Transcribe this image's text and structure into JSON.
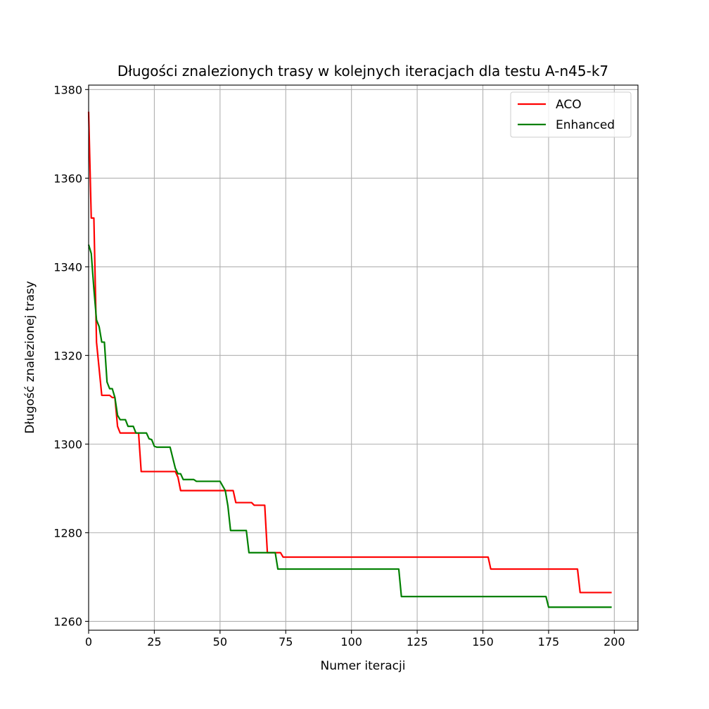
{
  "chart_data": {
    "type": "line",
    "title": "Długości znalezionych trasy w kolejnych iteracjach dla testu A-n45-k7",
    "xlabel": "Numer iteracji",
    "ylabel": "Długość znalezionej trasy",
    "xlim": [
      0,
      209
    ],
    "ylim": [
      1258,
      1381
    ],
    "xticks": [
      0,
      25,
      50,
      75,
      100,
      125,
      150,
      175,
      200
    ],
    "yticks": [
      1260,
      1280,
      1300,
      1320,
      1340,
      1360,
      1380
    ],
    "grid": true,
    "legend_position": "top-right",
    "series": [
      {
        "name": "ACO",
        "color": "#ff0000",
        "points": [
          [
            0,
            1375
          ],
          [
            1,
            1351
          ],
          [
            2,
            1351
          ],
          [
            3,
            1323
          ],
          [
            4,
            1317
          ],
          [
            5,
            1311
          ],
          [
            6,
            1311
          ],
          [
            7,
            1311
          ],
          [
            8,
            1311
          ],
          [
            9,
            1310.5
          ],
          [
            10,
            1310.5
          ],
          [
            11,
            1304
          ],
          [
            12,
            1302.5
          ],
          [
            13,
            1302.5
          ],
          [
            19,
            1302.5
          ],
          [
            20,
            1293.8
          ],
          [
            33,
            1293.8
          ],
          [
            34,
            1292.5
          ],
          [
            35,
            1289.5
          ],
          [
            55,
            1289.5
          ],
          [
            56,
            1286.8
          ],
          [
            62,
            1286.8
          ],
          [
            63,
            1286.2
          ],
          [
            67,
            1286.2
          ],
          [
            68,
            1275.5
          ],
          [
            73,
            1275.5
          ],
          [
            74,
            1274.5
          ],
          [
            152,
            1274.5
          ],
          [
            153,
            1271.8
          ],
          [
            186,
            1271.8
          ],
          [
            187,
            1266.5
          ],
          [
            199,
            1266.5
          ]
        ]
      },
      {
        "name": "Enhanced",
        "color": "#008000",
        "points": [
          [
            0,
            1345
          ],
          [
            1,
            1343
          ],
          [
            2,
            1335
          ],
          [
            3,
            1328
          ],
          [
            4,
            1326.5
          ],
          [
            5,
            1323
          ],
          [
            6,
            1323
          ],
          [
            7,
            1314
          ],
          [
            8,
            1312.5
          ],
          [
            9,
            1312.5
          ],
          [
            10,
            1310.5
          ],
          [
            11,
            1306.5
          ],
          [
            12,
            1305.5
          ],
          [
            14,
            1305.5
          ],
          [
            15,
            1304
          ],
          [
            17,
            1304
          ],
          [
            18,
            1302.5
          ],
          [
            22,
            1302.5
          ],
          [
            23,
            1301.2
          ],
          [
            24,
            1301
          ],
          [
            25,
            1299.5
          ],
          [
            26,
            1299.3
          ],
          [
            31,
            1299.3
          ],
          [
            33,
            1294.5
          ],
          [
            34,
            1293.3
          ],
          [
            35,
            1293.3
          ],
          [
            36,
            1292
          ],
          [
            40,
            1292
          ],
          [
            41,
            1291.6
          ],
          [
            50,
            1291.6
          ],
          [
            52,
            1289.5
          ],
          [
            53,
            1286
          ],
          [
            54,
            1280.5
          ],
          [
            60,
            1280.5
          ],
          [
            61,
            1275.5
          ],
          [
            71,
            1275.5
          ],
          [
            72,
            1271.8
          ],
          [
            118,
            1271.8
          ],
          [
            119,
            1265.6
          ],
          [
            174,
            1265.6
          ],
          [
            175,
            1263.2
          ],
          [
            199,
            1263.2
          ]
        ]
      }
    ]
  }
}
